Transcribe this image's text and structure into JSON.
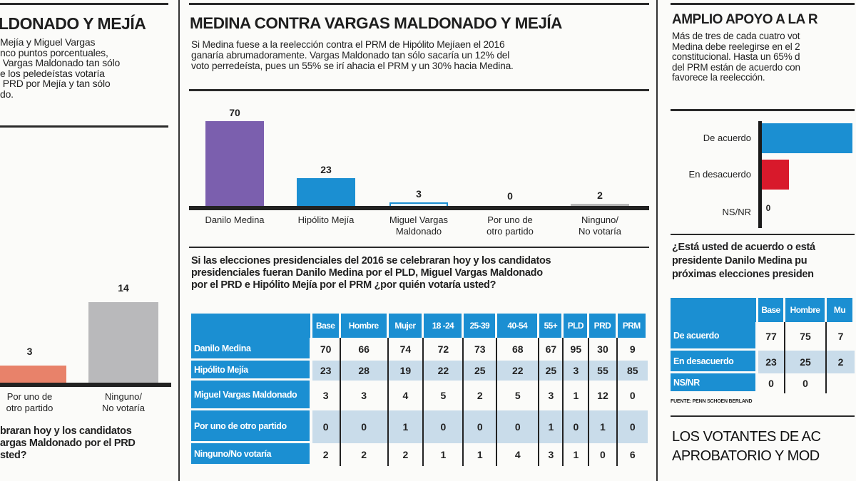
{
  "left_panel": {
    "title": "LDONADO Y MEJÍA",
    "intro": "Mejía y Miguel Vargas\nnco puntos porcentuales,\n Vargas Maldonado tan sólo\ne los peledeístas votaría\n PRD por Mejía y tan sólo\ndo.",
    "question": "braran hoy y los candidatos\nargas Maldonado por el PRD\nsted?"
  },
  "center_panel": {
    "title": "MEDINA CONTRA VARGAS MALDONADO Y MEJÍA",
    "intro": "Si Medina fuese a la reelección contra el PRM de Hipólito Mejíaen el 2016\nganaría abrumadoramente. Vargas Maldonado tan sólo sacaría un 12% del\nvoto perredeísta, pues un 55% se irí ahacia el PRM y un 30% hacia Medina.",
    "question": "Si las elecciones presidenciales del 2016 se celebraran hoy y los candidatos\npresidenciales fueran Danilo Medina por el PLD, Miguel Vargas Maldonado\npor el PRD e Hipólito Mejía por el PRM ¿por quién votaría usted?"
  },
  "right_panel": {
    "title": "AMPLIO APOYO A LA R",
    "intro": "Más de tres de cada cuatro vot\nMedina debe reelegirse en el 2\nconstitucional. Hasta un 65% d\ndel PRM están de acuerdo con\nfavorece la reelección.",
    "question": "¿Está usted de acuerdo o está\npresidente Danilo Medina pu\npróximas elecciones presiden",
    "source": "FUENTE: PENN SCHOEN BERLAND",
    "bottom_title": "LOS VOTANTES DE AC\nAPROBATORIO Y MOD"
  },
  "chart_data": [
    {
      "type": "bar",
      "categories": [
        "Danilo Medina",
        "Hipólito Mejía",
        "Miguel Vargas\nMaldonado",
        "Por uno de\notro partido",
        "Ninguno/\nNo votaría"
      ],
      "values": [
        70,
        23,
        3,
        0,
        2
      ],
      "colors": [
        "#7b5fae",
        "#1b8fd2",
        "#1b8fd2",
        "#cccccc",
        "#b8b8b8"
      ],
      "ylim": [
        0,
        70
      ]
    },
    {
      "type": "bar",
      "categories": [
        "Por uno de\notro partido",
        "Ninguno/\nNo votaría"
      ],
      "values": [
        3,
        14
      ],
      "colors": [
        "#e8826a",
        "#b9b9bb"
      ]
    },
    {
      "type": "bar",
      "orientation": "horizontal",
      "categories": [
        "De acuerdo",
        "En desacuerdo",
        "NS/NR"
      ],
      "values": [
        77,
        23,
        0
      ],
      "colors": [
        "#1b8fd2",
        "#d8192b",
        "#1b8fd2"
      ]
    },
    {
      "type": "table",
      "columns": [
        "Base",
        "Hombre",
        "Mujer",
        "18 -24",
        "25-39",
        "40-54",
        "55+",
        "PLD",
        "PRD",
        "PRM"
      ],
      "rows": [
        {
          "label": "Danilo Medina",
          "values": [
            70,
            66,
            74,
            72,
            73,
            68,
            67,
            95,
            30,
            9
          ]
        },
        {
          "label": "Hipólito Mejía",
          "values": [
            23,
            28,
            19,
            22,
            25,
            22,
            25,
            3,
            55,
            85
          ]
        },
        {
          "label": "Miguel Vargas Maldonado",
          "values": [
            3,
            3,
            4,
            5,
            2,
            5,
            3,
            1,
            12,
            0
          ]
        },
        {
          "label": "Por uno de otro partido",
          "values": [
            0,
            0,
            1,
            0,
            0,
            0,
            1,
            0,
            1,
            0
          ]
        },
        {
          "label": "Ninguno/No votaría",
          "values": [
            2,
            2,
            2,
            1,
            1,
            4,
            3,
            1,
            0,
            6
          ]
        }
      ]
    },
    {
      "type": "table",
      "columns": [
        "Base",
        "Hombre",
        "Mu"
      ],
      "rows": [
        {
          "label": "De acuerdo",
          "values": [
            77,
            75,
            7
          ]
        },
        {
          "label": "En desacuerdo",
          "values": [
            23,
            25,
            2
          ]
        },
        {
          "label": "NS/NR",
          "values": [
            0,
            0,
            ""
          ]
        }
      ]
    }
  ]
}
